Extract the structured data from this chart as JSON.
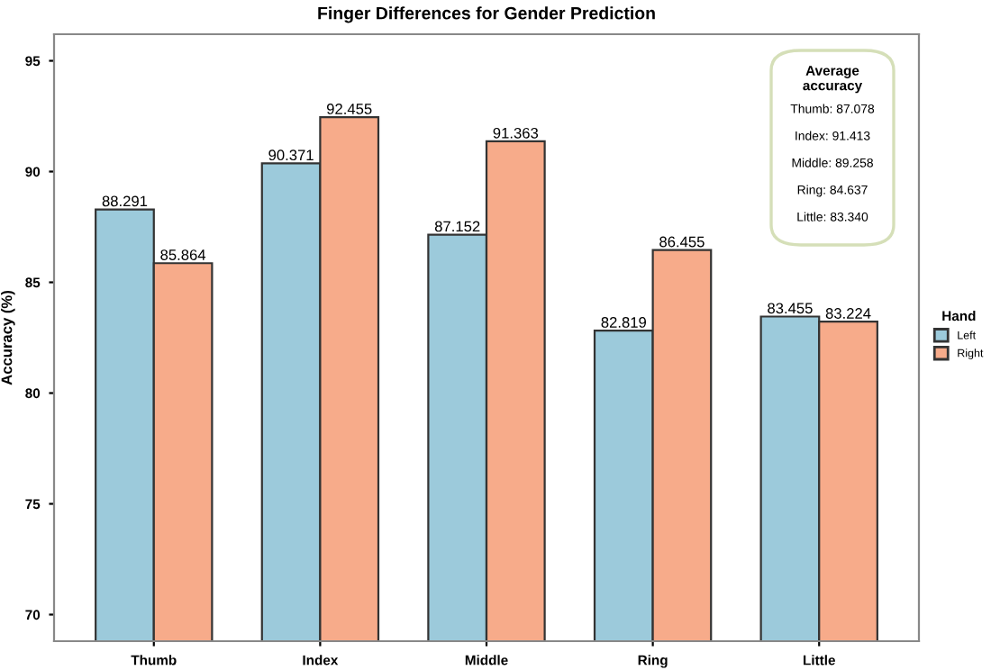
{
  "chart_data": {
    "type": "bar",
    "title": "Finger Differences for Gender Prediction",
    "ylabel": "Accuracy (%)",
    "legend_title": "Hand",
    "categories": [
      "Thumb",
      "Index",
      "Middle",
      "Ring",
      "Little"
    ],
    "series": [
      {
        "name": "Left",
        "color": "#9ccadb",
        "values": [
          88.291,
          90.371,
          87.152,
          82.819,
          83.455
        ]
      },
      {
        "name": "Right",
        "color": "#f7ab8a",
        "values": [
          85.864,
          92.455,
          91.363,
          86.455,
          83.224
        ]
      }
    ],
    "data_labels": true,
    "ylim": [
      68.8,
      96.2
    ],
    "yticks": [
      70,
      75,
      80,
      85,
      90,
      95
    ],
    "grid": false,
    "legend": "right",
    "annotations": [
      "Average\naccuracy",
      "Thumb: 87.078",
      "Index: 91.413",
      "Middle: 89.258",
      "Ring: 84.637",
      "Little: 83.340"
    ]
  }
}
